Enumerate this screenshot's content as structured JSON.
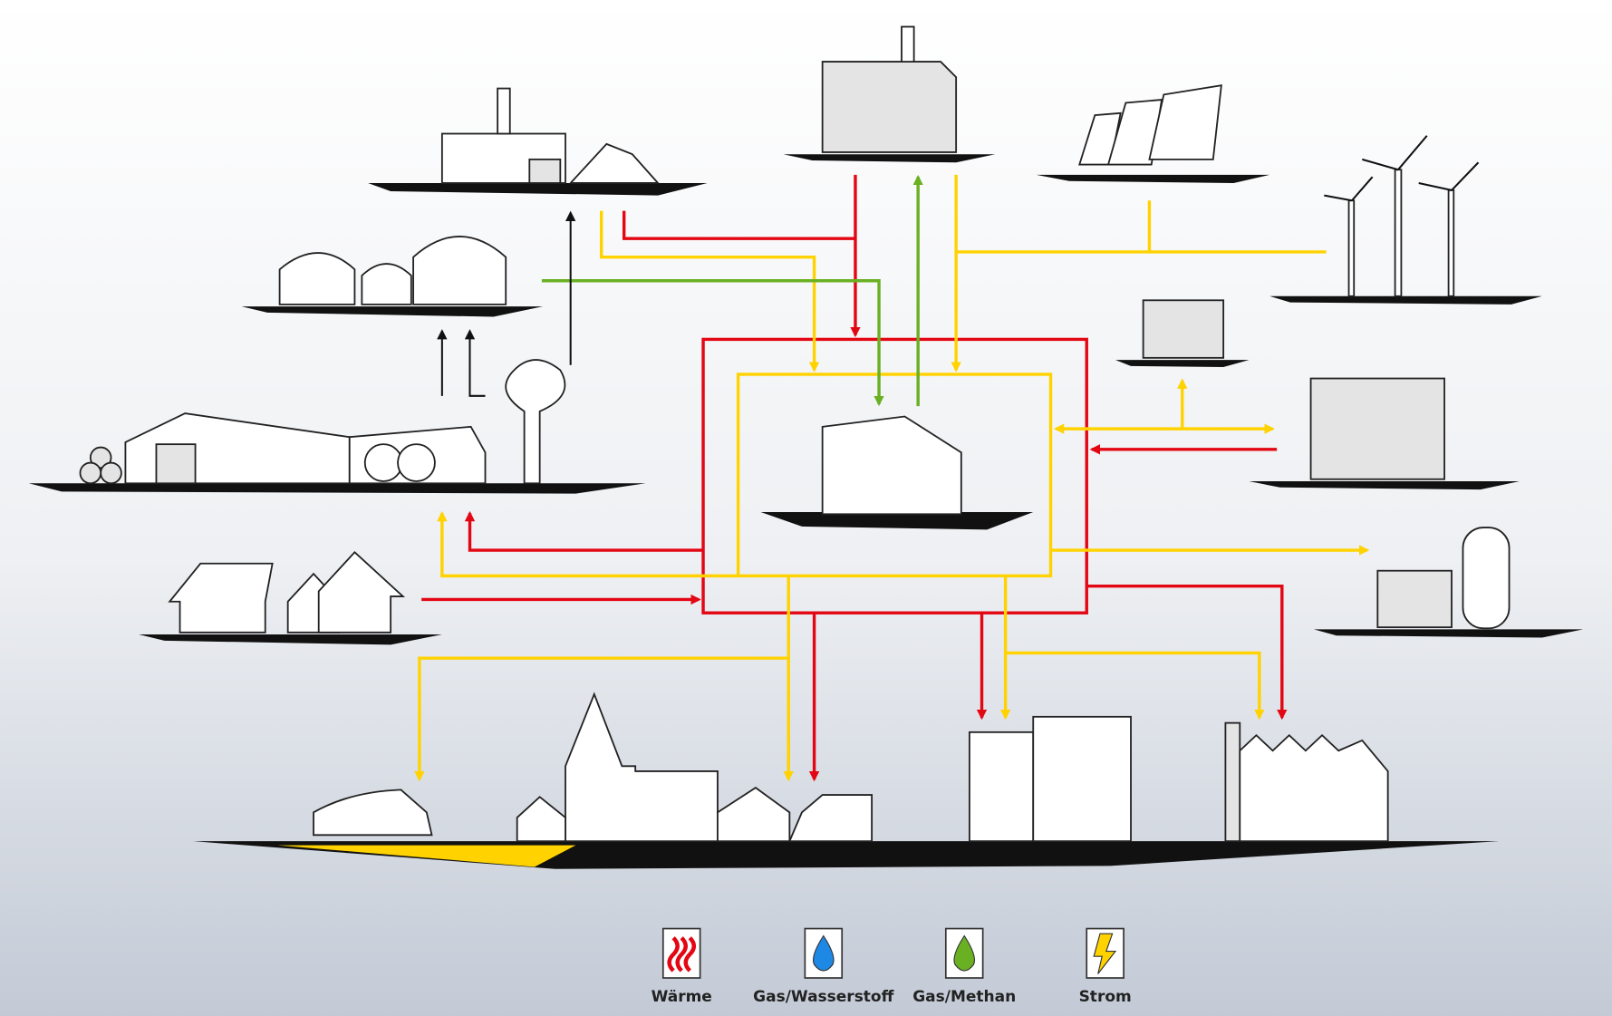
{
  "legend": {
    "items": [
      {
        "label": "Wärme"
      },
      {
        "label": "Gas/Wasserstoff"
      },
      {
        "label": "Gas/Methan"
      },
      {
        "label": "Strom"
      }
    ]
  }
}
